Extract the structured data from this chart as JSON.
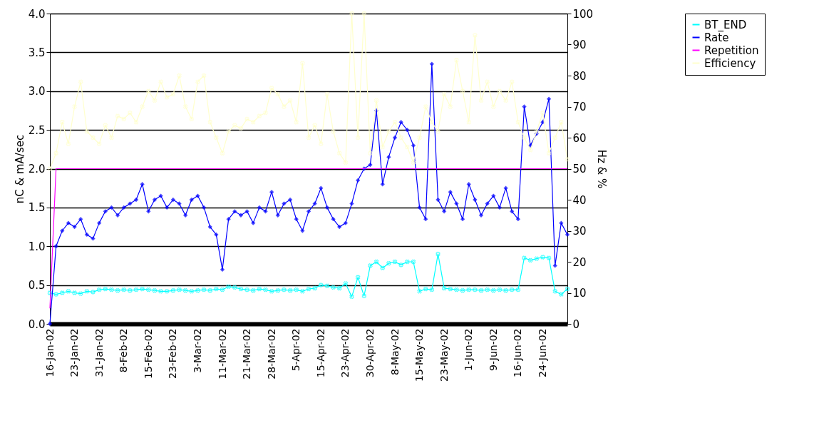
{
  "chart_data": {
    "type": "line",
    "categories": [
      "16-Jan-02",
      null,
      null,
      null,
      "23-Jan-02",
      null,
      null,
      null,
      "31-Jan-02",
      null,
      null,
      null,
      "8-Feb-02",
      null,
      null,
      null,
      "15-Feb-02",
      null,
      null,
      null,
      "23-Feb-02",
      null,
      null,
      null,
      "3-Mar-02",
      null,
      null,
      null,
      "11-Mar-02",
      null,
      null,
      null,
      "21-Mar-02",
      null,
      null,
      null,
      "28-Mar-02",
      null,
      null,
      null,
      "5-Apr-02",
      null,
      null,
      null,
      "15-Apr-02",
      null,
      null,
      null,
      "23-Apr-02",
      null,
      null,
      null,
      "30-Apr-02",
      null,
      null,
      null,
      "8-May-02",
      null,
      null,
      null,
      "15-May-02",
      null,
      null,
      null,
      "23-May-02",
      null,
      null,
      null,
      "1-Jun-02",
      null,
      null,
      null,
      "9-Jun-02",
      null,
      null,
      null,
      "16-Jun-02",
      null,
      null,
      null,
      "24-Jun-02",
      null,
      null,
      null,
      null
    ],
    "series": [
      {
        "name": "BT_END",
        "color": "#00ffff",
        "marker": "cross",
        "values": [
          0.4,
          0.38,
          0.4,
          0.42,
          0.4,
          0.39,
          0.42,
          0.41,
          0.44,
          0.45,
          0.44,
          0.43,
          0.44,
          0.43,
          0.44,
          0.45,
          0.44,
          0.43,
          0.42,
          0.42,
          0.43,
          0.44,
          0.43,
          0.42,
          0.43,
          0.44,
          0.43,
          0.45,
          0.44,
          0.48,
          0.47,
          0.45,
          0.44,
          0.43,
          0.45,
          0.44,
          0.42,
          0.43,
          0.44,
          0.43,
          0.44,
          0.42,
          0.45,
          0.46,
          0.5,
          0.49,
          0.47,
          0.46,
          0.52,
          0.35,
          0.6,
          0.36,
          0.75,
          0.8,
          0.72,
          0.78,
          0.8,
          0.76,
          0.8,
          0.8,
          0.42,
          0.45,
          0.44,
          0.9,
          0.46,
          0.45,
          0.44,
          0.43,
          0.44,
          0.44,
          0.43,
          0.44,
          0.43,
          0.44,
          0.43,
          0.44,
          0.44,
          0.85,
          0.82,
          0.84,
          0.86,
          0.85,
          0.42,
          0.38,
          0.45
        ]
      },
      {
        "name": "Rate",
        "color": "#0000ff",
        "marker": "diamond",
        "values": [
          0.0,
          1.0,
          1.2,
          1.3,
          1.25,
          1.35,
          1.15,
          1.1,
          1.3,
          1.45,
          1.5,
          1.4,
          1.5,
          1.55,
          1.6,
          1.8,
          1.45,
          1.6,
          1.65,
          1.5,
          1.6,
          1.55,
          1.4,
          1.6,
          1.65,
          1.5,
          1.25,
          1.15,
          0.7,
          1.35,
          1.45,
          1.4,
          1.45,
          1.3,
          1.5,
          1.45,
          1.7,
          1.4,
          1.55,
          1.6,
          1.35,
          1.2,
          1.45,
          1.55,
          1.75,
          1.5,
          1.35,
          1.25,
          1.3,
          1.55,
          1.85,
          2.0,
          2.05,
          2.75,
          1.8,
          2.15,
          2.4,
          2.6,
          2.5,
          2.3,
          1.5,
          1.35,
          3.35,
          1.6,
          1.45,
          1.7,
          1.55,
          1.35,
          1.8,
          1.6,
          1.4,
          1.55,
          1.65,
          1.5,
          1.75,
          1.45,
          1.35,
          2.8,
          2.3,
          2.45,
          2.6,
          2.9,
          0.75,
          1.3,
          1.15
        ]
      },
      {
        "name": "Repetition",
        "color": "#ff00ff",
        "marker": "none",
        "axis": "y2",
        "values": [
          5,
          50,
          50,
          50,
          50,
          50,
          50,
          50,
          50,
          50,
          50,
          50,
          50,
          50,
          50,
          50,
          50,
          50,
          50,
          50,
          50,
          50,
          50,
          50,
          50,
          50,
          50,
          50,
          50,
          50,
          50,
          50,
          50,
          50,
          50,
          50,
          50,
          50,
          50,
          50,
          50,
          50,
          50,
          50,
          50,
          50,
          50,
          50,
          50,
          50,
          50,
          50,
          50,
          50,
          50,
          50,
          50,
          50,
          50,
          50,
          50,
          50,
          50,
          50,
          50,
          50,
          50,
          50,
          50,
          50,
          50,
          50,
          50,
          50,
          50,
          50,
          50,
          50,
          50,
          50,
          50,
          50,
          50,
          50,
          50
        ]
      },
      {
        "name": "Efficiency",
        "color": "#ffffcc",
        "marker": "cross",
        "axis": "y2",
        "values": [
          50,
          55,
          65,
          58,
          70,
          78,
          62,
          60,
          58,
          64,
          60,
          67,
          66,
          68,
          65,
          70,
          75,
          72,
          78,
          73,
          74,
          80,
          70,
          66,
          78,
          80,
          65,
          60,
          55,
          62,
          64,
          63,
          66,
          65,
          67,
          68,
          76,
          74,
          70,
          72,
          65,
          84,
          60,
          64,
          58,
          74,
          62,
          55,
          52,
          100,
          60,
          100,
          55,
          72,
          57,
          62,
          65,
          60,
          57,
          52,
          60,
          70,
          65,
          62,
          74,
          70,
          85,
          75,
          65,
          93,
          72,
          78,
          70,
          75,
          72,
          78,
          65,
          60,
          56,
          62,
          68,
          55,
          60,
          65,
          53
        ]
      }
    ],
    "ylabel": "nC & mA/sec",
    "y2label": "Hz & %",
    "ylim": [
      0,
      4
    ],
    "yticks": [
      {
        "value": 0,
        "label": "0.0"
      },
      {
        "value": 0.5,
        "label": "0.5"
      },
      {
        "value": 1,
        "label": "1.0"
      },
      {
        "value": 1.5,
        "label": "1.5"
      },
      {
        "value": 2,
        "label": "2.0"
      },
      {
        "value": 2.5,
        "label": "2.5"
      },
      {
        "value": 3,
        "label": "3.0"
      },
      {
        "value": 3.5,
        "label": "3.5"
      },
      {
        "value": 4,
        "label": "4.0"
      }
    ],
    "y2lim": [
      0,
      100
    ],
    "y2ticks": [
      0,
      10,
      20,
      30,
      40,
      50,
      60,
      70,
      80,
      90,
      100
    ],
    "grid": "y",
    "legend": "right"
  }
}
